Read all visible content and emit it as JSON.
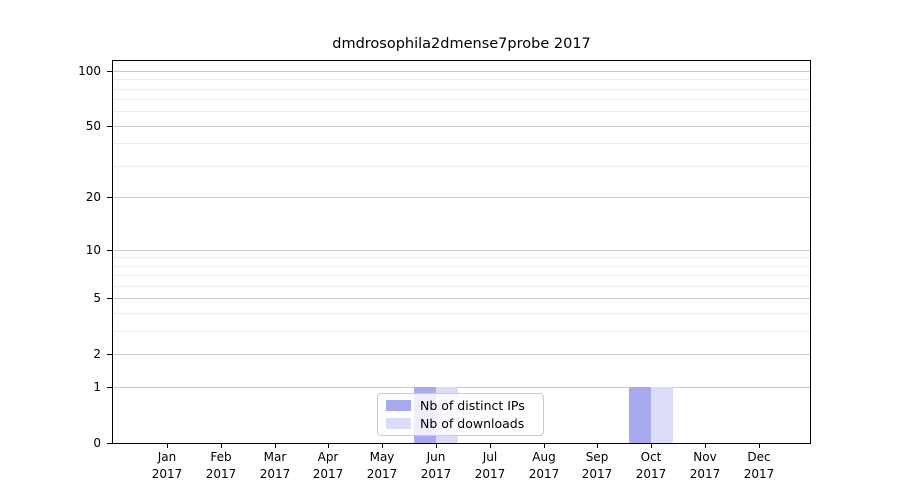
{
  "title": "dmdrosophila2dmense7probe 2017",
  "chart_data": {
    "type": "bar",
    "title": "dmdrosophila2dmense7probe 2017",
    "categories": [
      "Jan",
      "Feb",
      "Mar",
      "Apr",
      "May",
      "Jun",
      "Jul",
      "Aug",
      "Sep",
      "Oct",
      "Nov",
      "Dec"
    ],
    "category_year": "2017",
    "series": [
      {
        "name": "Nb of distinct IPs",
        "color": "#a9a9f0",
        "values": [
          0,
          0,
          0,
          0,
          0,
          1,
          0,
          0,
          0,
          1,
          0,
          0
        ]
      },
      {
        "name": "Nb of downloads",
        "color": "#dcdcf8",
        "values": [
          0,
          0,
          0,
          0,
          0,
          1,
          0,
          0,
          0,
          1,
          0,
          0
        ]
      }
    ],
    "xlabel": "",
    "ylabel": "",
    "y_axis": {
      "scale": "log1p",
      "ticks": [
        0,
        1,
        2,
        5,
        10,
        20,
        50,
        100
      ],
      "minor_ticks": [
        3,
        4,
        6,
        7,
        8,
        9,
        30,
        40,
        60,
        70,
        80,
        90
      ],
      "ylim": [
        0,
        113
      ]
    },
    "grid": "on",
    "legend_position": "lower-center-inside"
  },
  "colors": {
    "bar_distinct_ips": "#a9a9f0",
    "bar_downloads": "#dcdcf8",
    "grid_major": "#c9c9c9",
    "grid_minor": "#ececec",
    "axis": "#000000",
    "legend_border": "#cccccc"
  }
}
